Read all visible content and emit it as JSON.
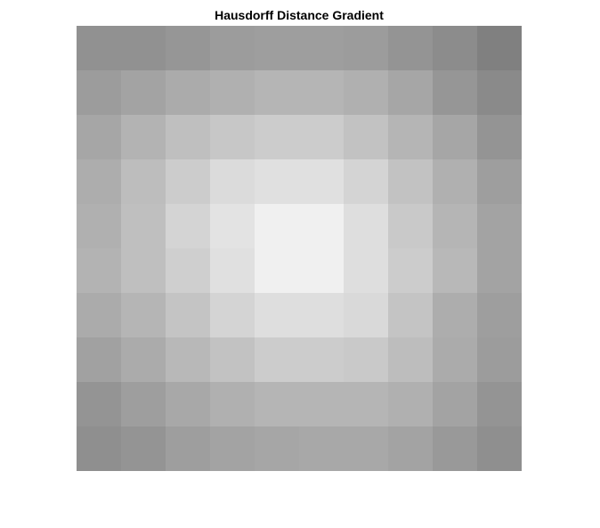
{
  "chart_data": {
    "type": "heatmap",
    "title": "Hausdorff Distance Gradient",
    "colormap": "gray",
    "grid": false,
    "legend": "none",
    "rows": 10,
    "cols": 10,
    "values": [
      [
        0.57,
        0.57,
        0.59,
        0.61,
        0.62,
        0.62,
        0.61,
        0.58,
        0.55,
        0.5
      ],
      [
        0.61,
        0.64,
        0.67,
        0.69,
        0.71,
        0.71,
        0.69,
        0.65,
        0.59,
        0.54
      ],
      [
        0.65,
        0.7,
        0.75,
        0.78,
        0.8,
        0.8,
        0.76,
        0.71,
        0.65,
        0.58
      ],
      [
        0.68,
        0.74,
        0.8,
        0.86,
        0.88,
        0.88,
        0.83,
        0.76,
        0.69,
        0.62
      ],
      [
        0.69,
        0.75,
        0.83,
        0.89,
        0.94,
        0.94,
        0.87,
        0.79,
        0.71,
        0.64
      ],
      [
        0.7,
        0.75,
        0.81,
        0.88,
        0.94,
        0.94,
        0.87,
        0.8,
        0.72,
        0.64
      ],
      [
        0.67,
        0.71,
        0.77,
        0.83,
        0.87,
        0.87,
        0.85,
        0.77,
        0.68,
        0.62
      ],
      [
        0.63,
        0.67,
        0.72,
        0.76,
        0.8,
        0.8,
        0.79,
        0.74,
        0.67,
        0.61
      ],
      [
        0.58,
        0.62,
        0.66,
        0.69,
        0.71,
        0.71,
        0.71,
        0.69,
        0.64,
        0.58
      ],
      [
        0.56,
        0.58,
        0.62,
        0.64,
        0.65,
        0.66,
        0.66,
        0.64,
        0.6,
        0.56
      ]
    ]
  }
}
